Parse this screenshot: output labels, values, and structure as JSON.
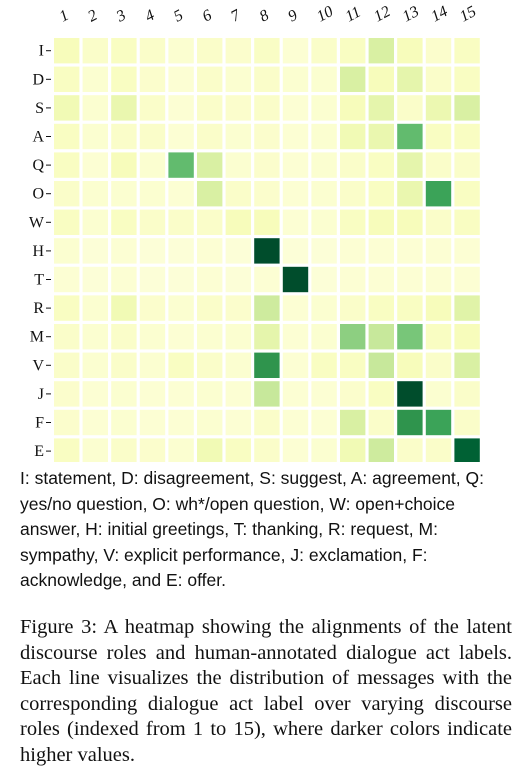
{
  "chart_data": {
    "type": "heatmap",
    "x_labels": [
      "1",
      "2",
      "3",
      "4",
      "5",
      "6",
      "7",
      "8",
      "9",
      "10",
      "11",
      "12",
      "13",
      "14",
      "15"
    ],
    "y_labels": [
      "I",
      "D",
      "S",
      "A",
      "Q",
      "O",
      "W",
      "H",
      "T",
      "R",
      "M",
      "V",
      "J",
      "F",
      "E"
    ],
    "value_range": [
      0,
      1
    ],
    "colormap": "YlGn",
    "values": [
      [
        0.12,
        0.08,
        0.1,
        0.08,
        0.06,
        0.08,
        0.07,
        0.09,
        0.05,
        0.08,
        0.1,
        0.25,
        0.12,
        0.07,
        0.1
      ],
      [
        0.1,
        0.06,
        0.1,
        0.07,
        0.05,
        0.08,
        0.06,
        0.08,
        0.06,
        0.06,
        0.25,
        0.12,
        0.2,
        0.08,
        0.1
      ],
      [
        0.15,
        0.06,
        0.18,
        0.08,
        0.05,
        0.08,
        0.07,
        0.08,
        0.05,
        0.06,
        0.12,
        0.2,
        0.08,
        0.17,
        0.25
      ],
      [
        0.1,
        0.06,
        0.08,
        0.08,
        0.05,
        0.08,
        0.06,
        0.07,
        0.05,
        0.06,
        0.15,
        0.18,
        0.55,
        0.1,
        0.1
      ],
      [
        0.1,
        0.05,
        0.12,
        0.06,
        0.55,
        0.25,
        0.06,
        0.07,
        0.05,
        0.06,
        0.08,
        0.1,
        0.2,
        0.08,
        0.08
      ],
      [
        0.08,
        0.06,
        0.06,
        0.06,
        0.05,
        0.25,
        0.08,
        0.07,
        0.05,
        0.06,
        0.08,
        0.1,
        0.18,
        0.65,
        0.1
      ],
      [
        0.1,
        0.06,
        0.1,
        0.08,
        0.08,
        0.08,
        0.12,
        0.12,
        0.05,
        0.06,
        0.1,
        0.12,
        0.12,
        0.08,
        0.1
      ],
      [
        0.06,
        0.04,
        0.05,
        0.04,
        0.04,
        0.05,
        0.04,
        0.97,
        0.04,
        0.04,
        0.05,
        0.05,
        0.05,
        0.05,
        0.05
      ],
      [
        0.05,
        0.04,
        0.05,
        0.04,
        0.04,
        0.05,
        0.04,
        0.05,
        0.97,
        0.04,
        0.05,
        0.05,
        0.05,
        0.05,
        0.05
      ],
      [
        0.1,
        0.06,
        0.15,
        0.07,
        0.06,
        0.08,
        0.07,
        0.28,
        0.05,
        0.06,
        0.08,
        0.1,
        0.1,
        0.12,
        0.22
      ],
      [
        0.08,
        0.06,
        0.08,
        0.06,
        0.05,
        0.06,
        0.06,
        0.2,
        0.05,
        0.06,
        0.45,
        0.3,
        0.5,
        0.1,
        0.12
      ],
      [
        0.08,
        0.06,
        0.08,
        0.06,
        0.1,
        0.08,
        0.06,
        0.7,
        0.05,
        0.1,
        0.1,
        0.3,
        0.12,
        0.08,
        0.25
      ],
      [
        0.07,
        0.05,
        0.06,
        0.05,
        0.05,
        0.06,
        0.05,
        0.3,
        0.05,
        0.05,
        0.07,
        0.1,
        0.97,
        0.06,
        0.08
      ],
      [
        0.07,
        0.05,
        0.06,
        0.05,
        0.05,
        0.06,
        0.05,
        0.08,
        0.05,
        0.05,
        0.25,
        0.08,
        0.7,
        0.65,
        0.08
      ],
      [
        0.1,
        0.06,
        0.08,
        0.07,
        0.06,
        0.15,
        0.1,
        0.08,
        0.05,
        0.06,
        0.15,
        0.28,
        0.08,
        0.08,
        0.9
      ]
    ]
  },
  "legend_text": "I: statement, D: disagreement, S: suggest, A: agreement, Q: yes/no question, O: wh*/open question, W: open+choice answer, H: initial greetings, T: thanking, R: request, M: sympathy, V: explicit performance, J: exclamation, F: acknowledge, and E: offer.",
  "caption_text": "Figure 3:  A heatmap showing the alignments of the latent discourse roles and human-annotated dialogue act labels. Each line visualizes the distribution of messages with the corresponding dialogue act label over varying discourse roles (indexed from 1 to 15), where darker colors indicate higher values."
}
